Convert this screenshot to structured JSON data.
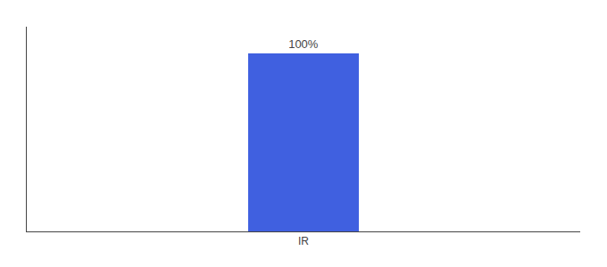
{
  "chart_data": {
    "type": "bar",
    "categories": [
      "IR"
    ],
    "values": [
      100
    ],
    "value_labels": [
      "100%"
    ],
    "data_labels": true,
    "color": "#4060E0",
    "ylim": [
      0,
      115
    ],
    "grid": false,
    "tick_labels": "x"
  }
}
